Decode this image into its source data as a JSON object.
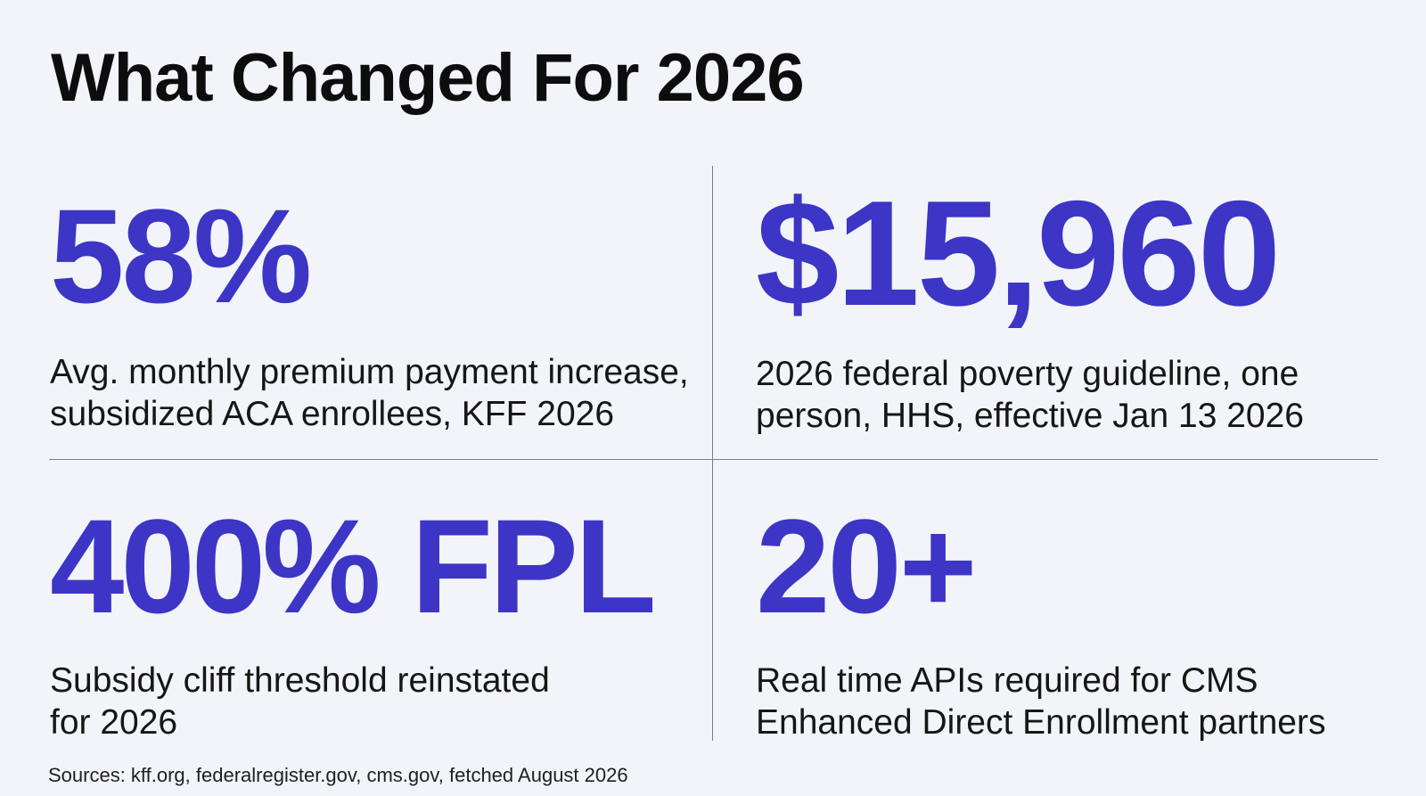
{
  "title": "What Changed For 2026",
  "accent_color": "#3c35c6",
  "stats": [
    {
      "value": "58%",
      "description_lines": [
        "Avg. monthly premium payment increase,",
        "subsidized ACA enrollees, KFF 2026"
      ]
    },
    {
      "value": "$15,960",
      "description_lines": [
        "2026 federal poverty guideline, one",
        "person, HHS, effective Jan 13 2026"
      ]
    },
    {
      "value": "400% FPL",
      "description_lines": [
        "Subsidy cliff threshold reinstated",
        "for 2026"
      ]
    },
    {
      "value": "20+",
      "description_lines": [
        "Real time APIs required for CMS",
        "Enhanced Direct Enrollment partners"
      ]
    }
  ],
  "sources": "Sources: kff.org, federalregister.gov, cms.gov, fetched August 2026"
}
